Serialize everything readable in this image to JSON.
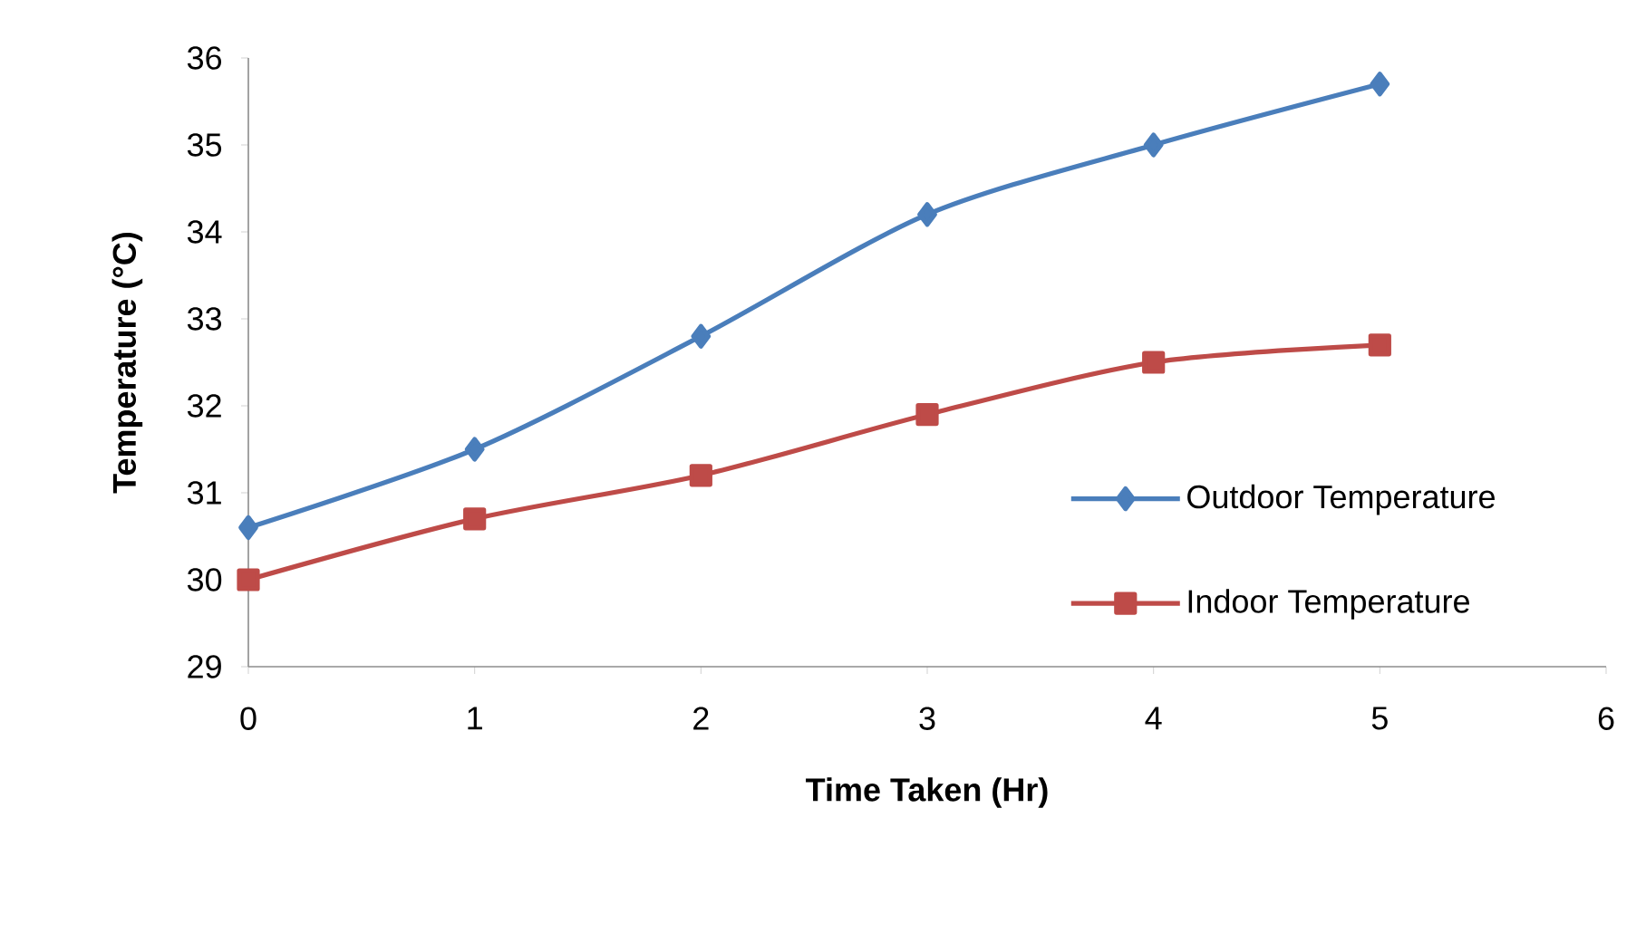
{
  "chart_data": {
    "type": "line",
    "xlabel": "Time Taken (Hr)",
    "ylabel": "Temperature (°C)",
    "x": [
      0,
      1,
      2,
      3,
      4,
      5
    ],
    "series": [
      {
        "name": "Outdoor Temperature",
        "color": "#4a7ebb",
        "marker": "diamond",
        "values": [
          30.6,
          31.5,
          32.8,
          34.2,
          35.0,
          35.7
        ]
      },
      {
        "name": "Indoor Temperature",
        "color": "#be4b48",
        "marker": "square",
        "values": [
          30.0,
          30.7,
          31.2,
          31.9,
          32.5,
          32.7
        ]
      }
    ],
    "xlim": [
      0,
      6
    ],
    "xticks": [
      0,
      1,
      2,
      3,
      4,
      5,
      6
    ],
    "ylim": [
      29,
      36
    ],
    "yticks": [
      29,
      30,
      31,
      32,
      33,
      34,
      35,
      36
    ],
    "grid": false,
    "legend": "right",
    "line_style": "solid"
  }
}
